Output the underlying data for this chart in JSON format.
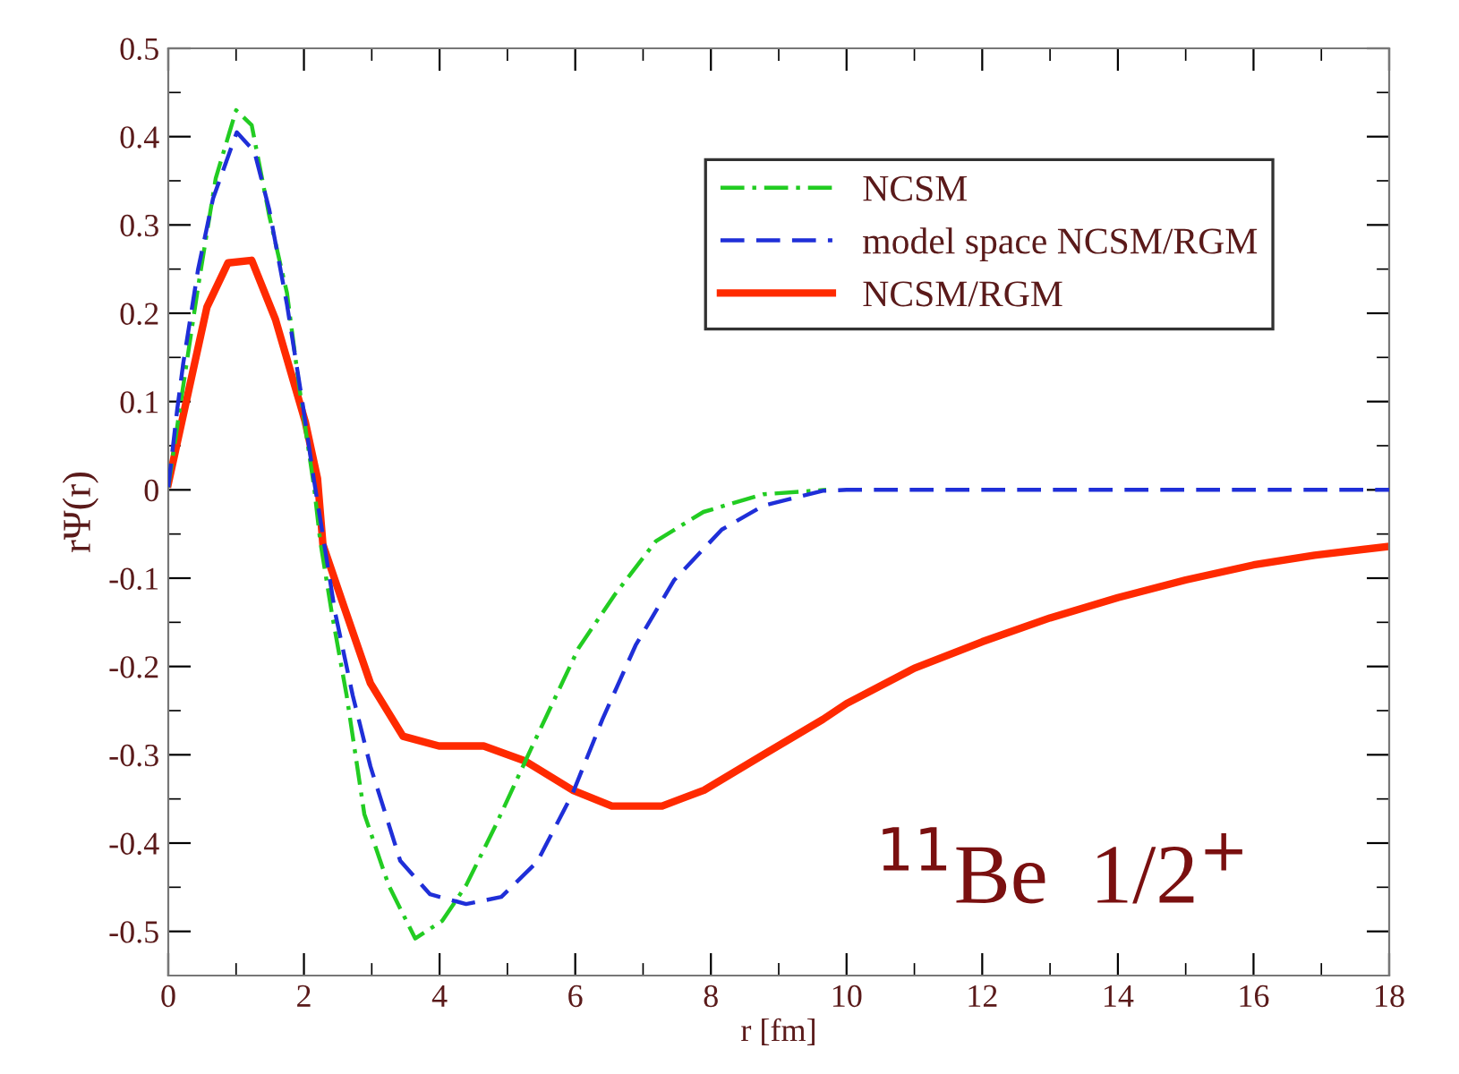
{
  "chart_data": {
    "type": "line",
    "xlabel": "r [fm]",
    "ylabel": "rΨ(r)",
    "xlim": [
      0,
      18
    ],
    "xticks": [
      0,
      2,
      4,
      6,
      8,
      10,
      12,
      14,
      16,
      18
    ],
    "ylim": [
      -0.55,
      0.5
    ],
    "yticks": [
      -0.5,
      -0.4,
      -0.3,
      -0.2,
      -0.1,
      0,
      0.1,
      0.2,
      0.3,
      0.4,
      0.5
    ],
    "grid": false,
    "legend": "top right",
    "marker": "none",
    "annotations": [
      "$^{11}$Be  1/2$^{+}$"
    ],
    "series": [
      {
        "name": "NCSM",
        "color": "#22cc22",
        "line_style": "dashdot",
        "x": [
          0,
          0.18,
          0.44,
          0.7,
          1.0,
          1.23,
          1.49,
          1.75,
          1.93,
          2.15,
          2.24,
          2.41,
          2.63,
          2.89,
          3.25,
          3.64,
          4.04,
          4.39,
          4.82,
          5.35,
          6.05,
          6.58,
          7.19,
          7.89,
          8.77,
          9.7
        ],
        "values": [
          0.003,
          0.097,
          0.23,
          0.353,
          0.43,
          0.413,
          0.31,
          0.223,
          0.117,
          0.003,
          -0.058,
          -0.139,
          -0.233,
          -0.367,
          -0.448,
          -0.508,
          -0.488,
          -0.448,
          -0.381,
          -0.293,
          -0.179,
          -0.119,
          -0.058,
          -0.025,
          -0.005,
          0
        ]
      },
      {
        "name": "model space NCSM/RGM",
        "color": "#1f2fd8",
        "line_style": "dashed",
        "x": [
          0,
          0.13,
          0.22,
          0.44,
          0.66,
          1.01,
          1.27,
          1.49,
          1.75,
          1.97,
          2.15,
          2.28,
          2.46,
          2.72,
          2.98,
          3.42,
          3.86,
          4.39,
          4.91,
          5.44,
          5.96,
          6.4,
          6.89,
          7.46,
          8.16,
          8.77,
          9.65,
          10,
          18
        ],
        "values": [
          0.003,
          0.09,
          0.143,
          0.25,
          0.33,
          0.405,
          0.383,
          0.317,
          0.21,
          0.103,
          0.01,
          -0.052,
          -0.139,
          -0.233,
          -0.313,
          -0.42,
          -0.458,
          -0.469,
          -0.461,
          -0.421,
          -0.344,
          -0.26,
          -0.176,
          -0.102,
          -0.045,
          -0.018,
          -0.001,
          0,
          0
        ]
      },
      {
        "name": "NCSM/RGM",
        "color": "#ff2a00",
        "line_style": "solid",
        "x": [
          0,
          0.57,
          0.88,
          1.23,
          1.58,
          2.02,
          2.2,
          2.28,
          2.59,
          2.98,
          3.46,
          3.99,
          4.65,
          5.26,
          5.96,
          6.54,
          7.28,
          7.9,
          8.77,
          9.65,
          10,
          11,
          12,
          13,
          14,
          15,
          16,
          16.9,
          18
        ],
        "values": [
          0.007,
          0.207,
          0.257,
          0.26,
          0.193,
          0.077,
          0.013,
          -0.062,
          -0.132,
          -0.219,
          -0.279,
          -0.29,
          -0.29,
          -0.307,
          -0.34,
          -0.358,
          -0.358,
          -0.34,
          -0.3,
          -0.26,
          -0.242,
          -0.202,
          -0.172,
          -0.145,
          -0.122,
          -0.102,
          -0.085,
          -0.074,
          -0.064
        ]
      }
    ]
  }
}
